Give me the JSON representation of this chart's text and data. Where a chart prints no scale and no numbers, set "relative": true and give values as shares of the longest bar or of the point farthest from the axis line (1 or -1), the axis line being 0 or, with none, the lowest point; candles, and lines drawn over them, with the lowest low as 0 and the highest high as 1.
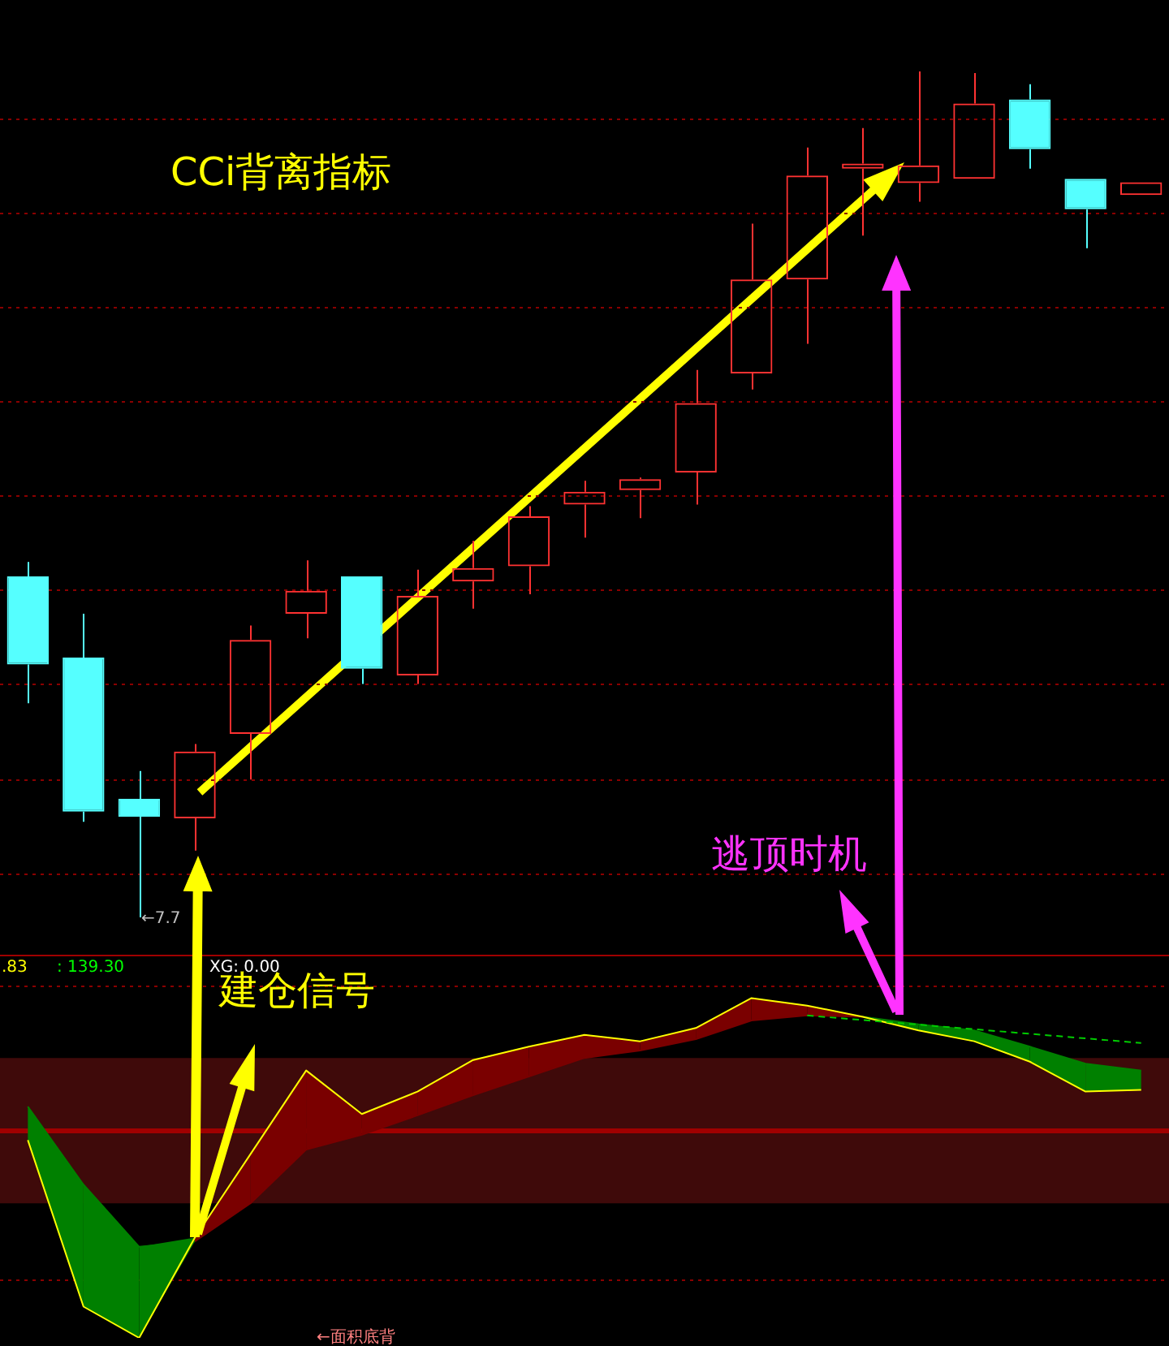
{
  "chart_data": [
    {
      "type": "candlestick",
      "relative": true,
      "categories": [
        null,
        null,
        null,
        null,
        null,
        null,
        null,
        null,
        null,
        null,
        null,
        null,
        null,
        null,
        null,
        null,
        null,
        null,
        null,
        null,
        null
      ],
      "ohlc": [
        [
          0.403,
          0.42,
          0.253,
          0.299
        ],
        [
          0.307,
          0.359,
          0.113,
          0.125
        ],
        [
          0.14,
          0.173,
          0,
          0.119
        ],
        [
          0.117,
          0.205,
          0.079,
          0.196
        ],
        [
          0.217,
          0.345,
          0.163,
          0.328
        ],
        [
          0.359,
          0.422,
          0.33,
          0.386
        ],
        [
          0.403,
          0.403,
          0.276,
          0.294
        ],
        [
          0.286,
          0.411,
          0.276,
          0.38
        ],
        [
          0.397,
          0.445,
          0.365,
          0.413
        ],
        [
          0.415,
          0.486,
          0.382,
          0.474
        ],
        [
          0.488,
          0.516,
          0.449,
          0.503
        ],
        [
          0.505,
          0.52,
          0.472,
          0.518
        ],
        [
          0.526,
          0.647,
          0.488,
          0.608
        ],
        [
          0.643,
          0.82,
          0.624,
          0.754
        ],
        [
          0.754,
          0.91,
          0.678,
          0.877
        ],
        [
          0.885,
          0.933,
          0.806,
          0.891
        ],
        [
          0.868,
          1,
          0.846,
          0.889
        ],
        [
          0.873,
          0.998,
          0.873,
          0.962
        ],
        [
          0.967,
          0.985,
          0.885,
          0.908
        ],
        [
          0.873,
          0.873,
          0.791,
          0.837
        ],
        [
          0.854,
          0.869,
          0.854,
          0.869
        ]
      ],
      "colors": [
        "#55ffff",
        "#55ffff",
        "#55ffff",
        "#ff3232",
        "#ff3232",
        "#ff3232",
        "#55ffff",
        "#ff3232",
        "#ff3232",
        "#ff3232",
        "#ff3232",
        "#ff3232",
        "#ff3232",
        "#ff3232",
        "#ff3232",
        "#ff3232",
        "#ff3232",
        "#ff3232",
        "#55ffff",
        "#55ffff",
        "#ff3232"
      ],
      "ref_lines": [
        {
          "axis": "y",
          "value": 0.944,
          "color": "#8a0000",
          "line_style": "dotted"
        },
        {
          "axis": "y",
          "value": 0.833,
          "color": "#8a0000",
          "line_style": "dotted"
        },
        {
          "axis": "y",
          "value": 0.722,
          "color": "#8a0000",
          "line_style": "dotted"
        },
        {
          "axis": "y",
          "value": 0.61,
          "color": "#8a0000",
          "line_style": "dotted"
        },
        {
          "axis": "y",
          "value": 0.499,
          "color": "#8a0000",
          "line_style": "dotted"
        },
        {
          "axis": "y",
          "value": 0.388,
          "color": "#8a0000",
          "line_style": "dotted"
        },
        {
          "axis": "y",
          "value": 0.276,
          "color": "#8a0000",
          "line_style": "dotted"
        },
        {
          "axis": "y",
          "value": 0.163,
          "color": "#8a0000",
          "line_style": "dotted"
        },
        {
          "axis": "y",
          "value": 0.052,
          "color": "#8a0000",
          "line_style": "dotted"
        }
      ],
      "annotations": [
        "CCi背离指标",
        "逃顶时机",
        "←7.7"
      ]
    },
    {
      "type": "line",
      "relative": true,
      "categories": [
        null,
        null,
        null,
        null,
        null,
        null,
        null,
        null,
        null,
        null,
        null,
        null,
        null,
        null,
        null,
        null,
        null,
        null,
        null,
        null,
        null
      ],
      "series": [
        {
          "color": "#ffff00",
          "values": [
            0.582,
            0.092,
            0,
            0.295,
            0.541,
            0.787,
            0.659,
            0.725,
            0.818,
            0.857,
            0.892,
            0.873,
            0.912,
            1,
            0.978,
            0.945,
            0.905,
            0.873,
            0.813,
            0.725,
            0.73
          ]
        },
        {
          "color": "#7a0000",
          "values": [
            null,
            null,
            null,
            0.284,
            0.396,
            0.554,
            0.598,
            0.655,
            0.714,
            0.769,
            0.824,
            0.846,
            0.879,
            0.934,
            0.949,
            0.945,
            null,
            null,
            null,
            null,
            null
          ],
          "lower": [
            null,
            null,
            null,
            0.284,
            0.396,
            0.554,
            0.598,
            0.655,
            0.714,
            0.769,
            0.824,
            0.846,
            0.879,
            0.934,
            0.949,
            0.945,
            null,
            null,
            null,
            null,
            null
          ],
          "upper": [
            null,
            null,
            null,
            0.295,
            0.541,
            0.787,
            0.659,
            0.725,
            0.818,
            0.857,
            0.892,
            0.873,
            0.912,
            1,
            0.978,
            0.945,
            null,
            null,
            null,
            null,
            null
          ]
        },
        {
          "color": "#008000",
          "values": [
            0.681,
            0.451,
            0.268,
            0.284,
            null,
            null,
            null,
            null,
            null,
            null,
            null,
            null,
            null,
            null,
            null,
            0.945,
            0.923,
            0.905,
            0.857,
            0.807,
            0.787
          ],
          "lower": [
            0.582,
            0.092,
            0,
            0.284,
            null,
            null,
            null,
            null,
            null,
            null,
            null,
            null,
            null,
            null,
            null,
            0.945,
            0.905,
            0.873,
            0.813,
            0.725,
            0.73
          ],
          "upper": [
            0.681,
            0.451,
            0.268,
            0.295,
            null,
            null,
            null,
            null,
            null,
            null,
            null,
            null,
            null,
            null,
            null,
            0.945,
            0.923,
            0.905,
            0.857,
            0.807,
            0.787
          ]
        },
        {
          "color": "#00cc00",
          "line_style": "dashed",
          "values": [
            null,
            null,
            null,
            null,
            null,
            null,
            null,
            null,
            null,
            null,
            null,
            null,
            null,
            null,
            0.949,
            null,
            null,
            null,
            null,
            null,
            0.868
          ]
        }
      ],
      "bands": [
        {
          "axis": "y",
          "from": 0.396,
          "to": 0.824,
          "color": "#3f0a0a"
        }
      ],
      "ref_lines": [
        {
          "axis": "y",
          "value": 0.611,
          "color": "#a00000",
          "line_style": "solid"
        },
        {
          "axis": "y",
          "value": 1.037,
          "color": "#8a0000",
          "line_style": "dotted"
        },
        {
          "axis": "y",
          "value": 0.174,
          "color": "#8a0000",
          "line_style": "dotted"
        }
      ],
      "annotations": [
        ".83",
        ": 139.30",
        "XG: 0.00",
        "建仓信号",
        "←面积底背"
      ]
    }
  ]
}
